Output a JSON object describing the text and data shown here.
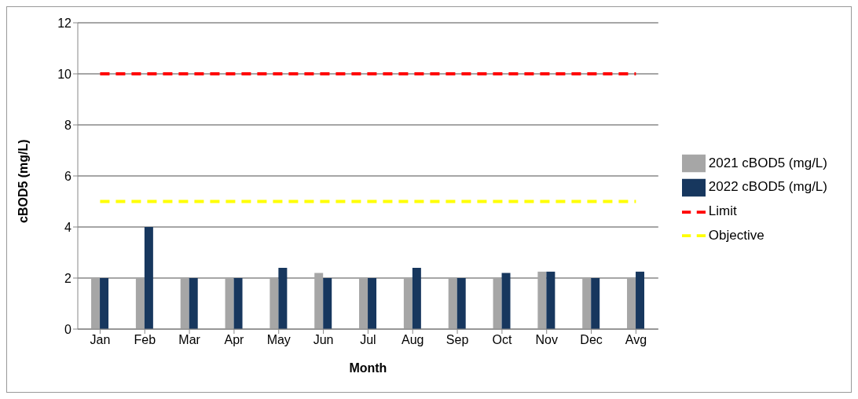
{
  "chart_data": {
    "type": "bar",
    "xlabel": "Month",
    "ylabel": "cBOD5 (mg/L)",
    "categories": [
      "Jan",
      "Feb",
      "Mar",
      "Apr",
      "May",
      "Jun",
      "Jul",
      "Aug",
      "Sep",
      "Oct",
      "Nov",
      "Dec",
      "Avg"
    ],
    "series": [
      {
        "name": "2021 cBOD5 (mg/L)",
        "color": "#a6a6a6",
        "values": [
          2,
          2,
          2,
          2,
          2,
          2.2,
          2,
          2,
          2,
          2,
          2.25,
          2,
          2
        ]
      },
      {
        "name": "2022 cBOD5 (mg/L)",
        "color": "#17375e",
        "values": [
          2,
          4,
          2,
          2,
          2.4,
          2,
          2,
          2.4,
          2,
          2.2,
          2.25,
          2,
          2.25
        ]
      },
      {
        "name": "Objective",
        "type": "line",
        "color": "#ffff00",
        "line_style": "dashed",
        "values": [
          5,
          5,
          5,
          5,
          5,
          5,
          5,
          5,
          5,
          5,
          5,
          5,
          5
        ]
      },
      {
        "name": "Limit",
        "type": "line",
        "color": "#ff0000",
        "line_style": "dashed",
        "values": [
          10,
          10,
          10,
          10,
          10,
          10,
          10,
          10,
          10,
          10,
          10,
          10,
          10
        ]
      }
    ],
    "ylim": [
      0,
      12
    ],
    "yticks": [
      0,
      2,
      4,
      6,
      8,
      10,
      12
    ],
    "grid": "y",
    "legend": "right",
    "marker": "none"
  }
}
